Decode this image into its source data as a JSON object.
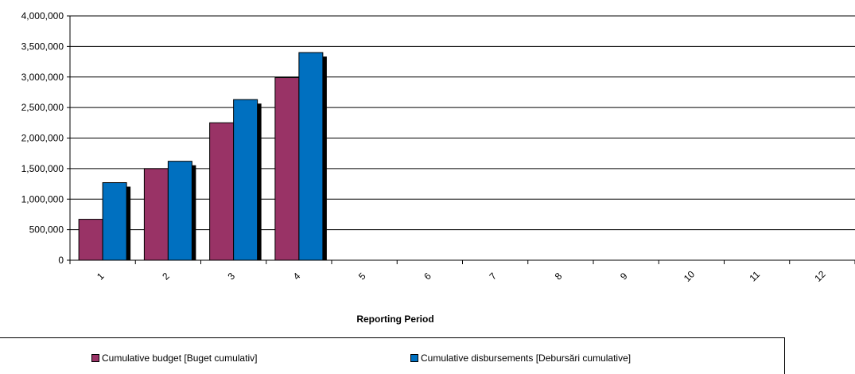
{
  "chart_data": {
    "type": "bar",
    "categories": [
      "1",
      "2",
      "3",
      "4",
      "5",
      "6",
      "7",
      "8",
      "9",
      "10",
      "11",
      "12"
    ],
    "series": [
      {
        "name": "Cumulative budget [Buget cumulativ]",
        "color": "#993366",
        "values": [
          670000,
          1500000,
          2250000,
          2990000,
          0,
          0,
          0,
          0,
          0,
          0,
          0,
          0
        ]
      },
      {
        "name": "Cumulative disbursements [Debursări cumulative]",
        "color": "#0070C0",
        "values": [
          1270000,
          1620000,
          2630000,
          3400000,
          0,
          0,
          0,
          0,
          0,
          0,
          0,
          0
        ]
      }
    ],
    "ylim": [
      0,
      4000000
    ],
    "yticks": [
      "0",
      "500,000",
      "1,000,000",
      "1,500,000",
      "2,000,000",
      "2,500,000",
      "3,000,000",
      "3,500,000",
      "4,000,000"
    ],
    "xlabel": "Reporting Period",
    "ylabel": "",
    "title": "",
    "grid": true,
    "legend_position": "bottom"
  }
}
